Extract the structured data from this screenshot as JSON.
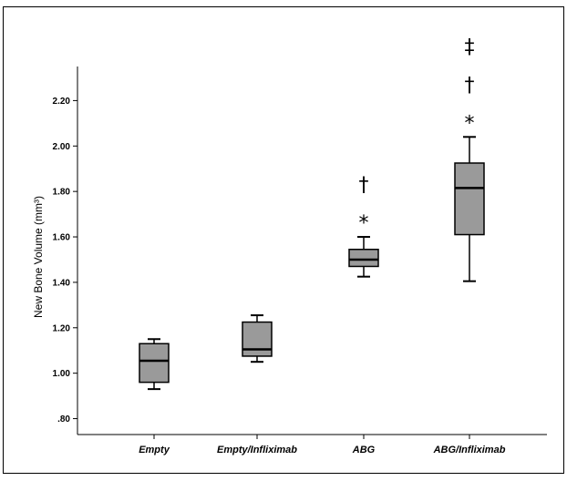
{
  "chart_data": {
    "type": "boxplot",
    "ylabel": "New Bone Volume (mm³)",
    "xlabel": "",
    "ylim": [
      0.73,
      2.35
    ],
    "yticks": [
      0.8,
      1.0,
      1.2,
      1.4,
      1.6,
      1.8,
      2.0,
      2.2
    ],
    "ytick_labels": [
      ".80",
      "1.00",
      "1.20",
      "1.40",
      "1.60",
      "1.80",
      "2.00",
      "2.20"
    ],
    "categories": [
      "Empty",
      "Empty/Infliximab",
      "ABG",
      "ABG/Infliximab"
    ],
    "boxes": [
      {
        "min": 0.93,
        "q1": 0.96,
        "median": 1.055,
        "q3": 1.13,
        "max": 1.15,
        "annotations": []
      },
      {
        "min": 1.05,
        "q1": 1.075,
        "median": 1.105,
        "q3": 1.225,
        "max": 1.255,
        "annotations": []
      },
      {
        "min": 1.425,
        "q1": 1.47,
        "median": 1.5,
        "q3": 1.545,
        "max": 1.6,
        "annotations": [
          "*",
          "†"
        ]
      },
      {
        "min": 1.405,
        "q1": 1.61,
        "median": 1.815,
        "q3": 1.925,
        "max": 2.04,
        "annotations": [
          "*",
          "†",
          "‡"
        ]
      }
    ],
    "grid": false,
    "box_color": "#9a9a9a"
  }
}
